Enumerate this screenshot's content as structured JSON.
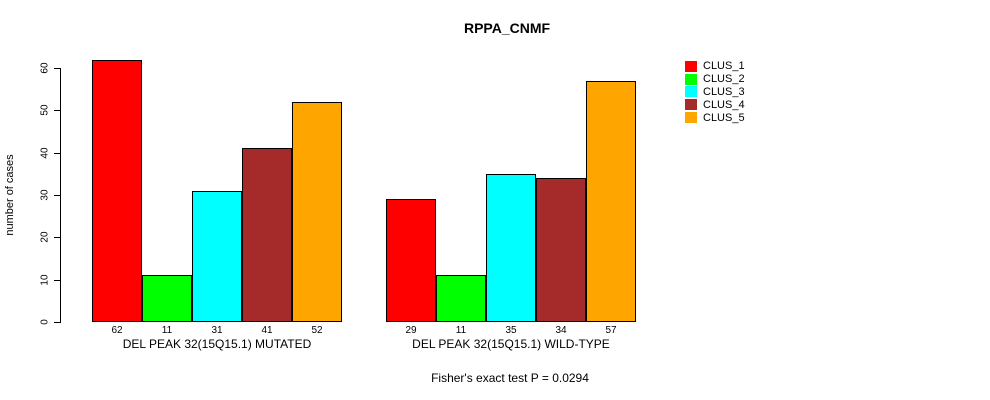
{
  "chart_data": {
    "type": "bar",
    "title": "RPPA_CNMF",
    "ylabel": "number of cases",
    "xlabel": "",
    "ylim": [
      0,
      62
    ],
    "yticks": [
      0,
      10,
      20,
      30,
      40,
      50,
      60
    ],
    "grid": false,
    "legend_position": "top-right-outside",
    "categories": [
      "DEL PEAK 32(15Q15.1) MUTATED",
      "DEL PEAK 32(15Q15.1) WILD-TYPE"
    ],
    "category_keys": [
      "mutated",
      "wild-type"
    ],
    "series": [
      {
        "name": "CLUS_1",
        "color": "#FF0000",
        "values": [
          62,
          29
        ]
      },
      {
        "name": "CLUS_2",
        "color": "#00FF00",
        "values": [
          11,
          11
        ]
      },
      {
        "name": "CLUS_3",
        "color": "#00FFFF",
        "values": [
          31,
          35
        ]
      },
      {
        "name": "CLUS_4",
        "color": "#A52A2A",
        "values": [
          41,
          34
        ]
      },
      {
        "name": "CLUS_5",
        "color": "#FFA500",
        "values": [
          52,
          57
        ]
      }
    ],
    "bar_value_labels": {
      "mutated": [
        "62",
        "11",
        "31",
        "41",
        "52"
      ],
      "wild-type": [
        "29",
        "11",
        "35",
        "34",
        "57"
      ]
    },
    "annotation": "Fisher's exact test P = 0.0294"
  }
}
